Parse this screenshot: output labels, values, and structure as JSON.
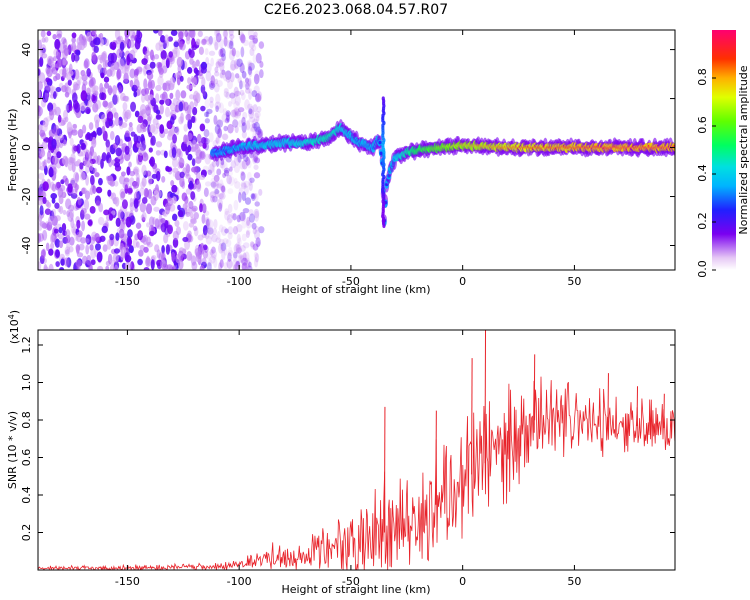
{
  "title": "C2E6.2023.068.04.57.R07",
  "chart_data": [
    {
      "type": "heatmap",
      "xlabel": "Height of straight line (km)",
      "ylabel": "Frequency (Hz)",
      "xlim": [
        -190,
        95
      ],
      "ylim": [
        -50,
        48
      ],
      "xticks": [
        -150,
        -100,
        -50,
        0,
        50
      ],
      "xtick_labels": [
        "-150",
        "-100",
        "-50",
        "0",
        "50"
      ],
      "yticks": [
        -40,
        -20,
        0,
        20,
        40
      ],
      "ytick_labels": [
        "-40",
        "-20",
        "0",
        "20",
        "40"
      ],
      "colorbar": {
        "label": "Normalized spectral amplitude",
        "range": [
          0,
          1
        ],
        "ticks": [
          0.0,
          0.2,
          0.4,
          0.6,
          0.8
        ],
        "tick_labels": [
          "0.0",
          "0.2",
          "0.4",
          "0.6",
          "0.8"
        ],
        "colormap": "rainbow"
      },
      "ridge": {
        "x": [
          -110,
          -100,
          -90,
          -80,
          -70,
          -60,
          -55,
          -52,
          -48,
          -44,
          -40,
          -38,
          -37,
          -36,
          -35,
          -34,
          -32,
          -30,
          -25,
          -20,
          -10,
          0,
          10,
          20,
          40,
          60,
          80,
          95
        ],
        "y": [
          -2,
          0,
          1,
          2,
          2,
          4,
          8,
          6,
          3,
          1,
          0,
          3,
          2,
          -6,
          -30,
          -15,
          -8,
          -4,
          -2,
          -1,
          0,
          1,
          0.5,
          0,
          0,
          0,
          0,
          0
        ],
        "amplitude": [
          0.25,
          0.3,
          0.35,
          0.35,
          0.4,
          0.45,
          0.4,
          0.35,
          0.3,
          0.3,
          0.3,
          0.3,
          0.25,
          0.25,
          0.2,
          0.25,
          0.3,
          0.35,
          0.45,
          0.55,
          0.65,
          0.75,
          0.8,
          0.85,
          0.9,
          0.95,
          0.95,
          0.95
        ]
      },
      "noise_region_x": [
        -190,
        -100
      ]
    },
    {
      "type": "line",
      "xlabel": "Height of straight line (km)",
      "ylabel": "SNR (10 * v/v)",
      "y_multiplier": "(x10⁴)",
      "y_multiplier_base": "(x10",
      "y_multiplier_exp": "4",
      "y_multiplier_close": ")",
      "xlim": [
        -190,
        95
      ],
      "ylim": [
        0,
        1.28
      ],
      "xticks": [
        -150,
        -100,
        -50,
        0,
        50
      ],
      "xtick_labels": [
        "-150",
        "-100",
        "-50",
        "0",
        "50"
      ],
      "yticks": [
        0.2,
        0.4,
        0.6,
        0.8,
        1.0,
        1.2
      ],
      "ytick_labels": [
        "0.2",
        "0.4",
        "0.6",
        "0.8",
        "1.0",
        "1.2"
      ],
      "series": [
        {
          "color": "#e8232a",
          "envelope": {
            "x": [
              -190,
              -150,
              -110,
              -100,
              -90,
              -80,
              -70,
              -60,
              -50,
              -45,
              -40,
              -35,
              -30,
              -25,
              -20,
              -15,
              -10,
              -5,
              0,
              5,
              10,
              15,
              20,
              25,
              30,
              35,
              40,
              50,
              60,
              70,
              80,
              95
            ],
            "base": [
              0.01,
              0.01,
              0.015,
              0.03,
              0.05,
              0.07,
              0.07,
              0.1,
              0.14,
              0.16,
              0.18,
              0.2,
              0.2,
              0.22,
              0.24,
              0.3,
              0.38,
              0.43,
              0.47,
              0.52,
              0.57,
              0.6,
              0.65,
              0.68,
              0.72,
              0.75,
              0.77,
              0.78,
              0.77,
              0.76,
              0.77,
              0.75
            ],
            "amplitude": [
              0.01,
              0.015,
              0.02,
              0.03,
              0.07,
              0.08,
              0.09,
              0.14,
              0.18,
              0.26,
              0.3,
              0.3,
              0.26,
              0.28,
              0.32,
              0.35,
              0.38,
              0.36,
              0.35,
              0.35,
              0.36,
              0.34,
              0.3,
              0.28,
              0.26,
              0.24,
              0.22,
              0.2,
              0.18,
              0.16,
              0.15,
              0.15
            ]
          },
          "peaks": [
            {
              "x": 10,
              "y": 1.28
            },
            {
              "x": 32,
              "y": 1.15
            },
            {
              "x": 4,
              "y": 1.13
            },
            {
              "x": -35,
              "y": 0.87
            },
            {
              "x": -12,
              "y": 0.85
            },
            {
              "x": 65,
              "y": 1.05
            },
            {
              "x": 78,
              "y": 0.98
            },
            {
              "x": 90,
              "y": 0.94
            }
          ]
        }
      ]
    }
  ]
}
